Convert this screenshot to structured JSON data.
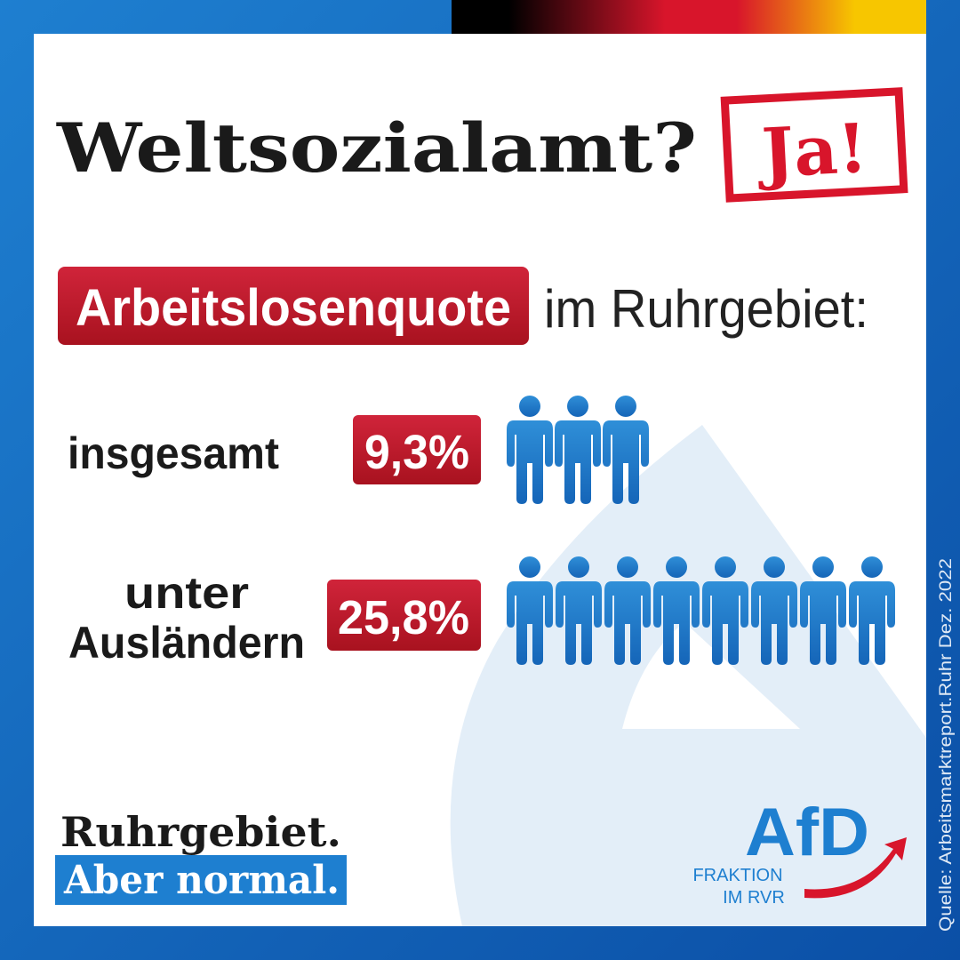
{
  "header": {
    "title": "Weltsozialamt?",
    "stamp": "Ja!"
  },
  "subtitle": {
    "highlight": "Arbeitslosenquote",
    "rest": "im Ruhrgebiet:"
  },
  "rows": [
    {
      "label": [
        "insgesamt"
      ],
      "value": "9,3%"
    },
    {
      "label": [
        "unter",
        "Ausländern"
      ],
      "value": "25,8%"
    }
  ],
  "slogan": [
    "Ruhrgebiet.",
    "Aber normal."
  ],
  "logo": {
    "name": "AfD",
    "line1": "FRAKTION",
    "line2": "IM RVR"
  },
  "source": "Quelle: Arbeitsmarktreport.Ruhr Dez. 2022"
}
